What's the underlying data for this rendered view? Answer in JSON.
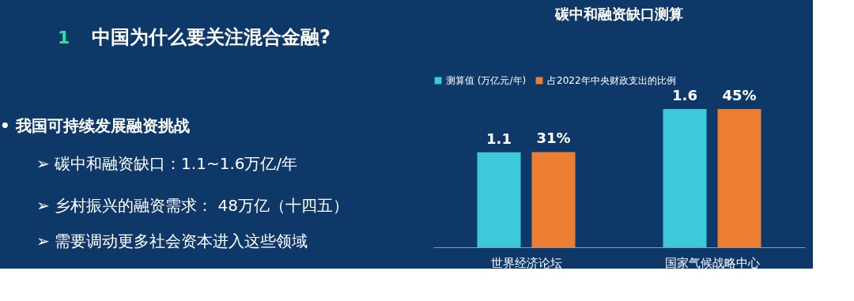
{
  "chart_data": {
    "type": "bar",
    "title": "碳中和融资缺口测算",
    "categories": [
      "世界经济论坛",
      "国家气候战略中心"
    ],
    "series": [
      {
        "name": "测算值 (万亿元/年)",
        "color": "#3ec8dc",
        "values": [
          1.1,
          1.6
        ],
        "value_labels": [
          "1.1",
          "1.6"
        ]
      },
      {
        "name": "占2022年中央财政支出的比例",
        "color": "#ed7d31",
        "values": [
          31,
          45
        ],
        "value_labels": [
          "31%",
          "45%"
        ],
        "axis": "y2"
      }
    ],
    "tick_labels": "x",
    "legend": "top",
    "annotations": [
      "1",
      "中国为什么要关注混合金融?",
      "•  我国可持续发展融资挑战",
      "➢  碳中和融资缺口：1.1~1.6万亿/年",
      "➢  乡村振兴的融资需求： 48万亿（十四五）",
      "➢  需要调动更多社会资本进入这些领域"
    ]
  }
}
